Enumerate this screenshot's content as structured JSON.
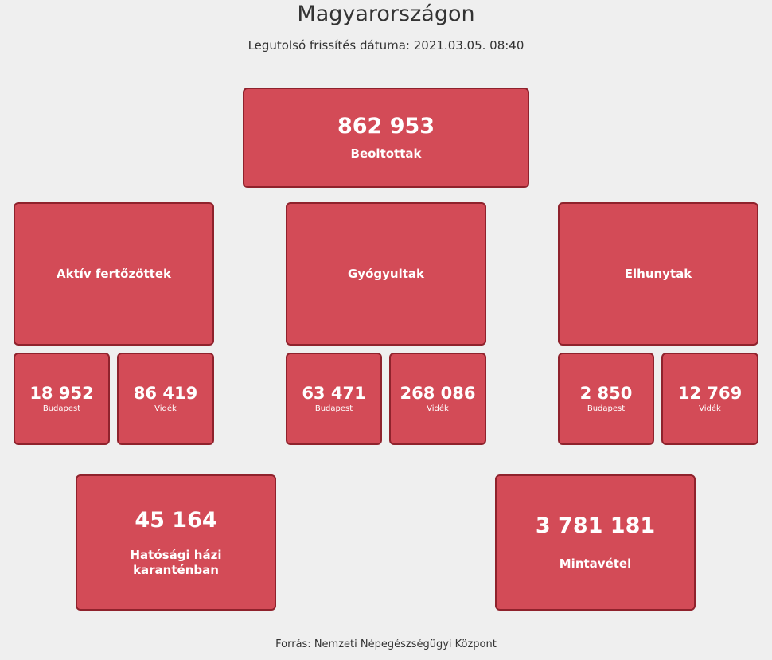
{
  "header": {
    "title": "Magyarországon",
    "updated": "Legutolsó frissítés dátuma: 2021.03.05. 08:40"
  },
  "vaccinated": {
    "value": "862 953",
    "label": "Beoltottak"
  },
  "active": {
    "label": "Aktív fertőzöttek",
    "budapest": {
      "value": "18 952",
      "label": "Budapest"
    },
    "countryside": {
      "value": "86 419",
      "label": "Vidék"
    }
  },
  "recovered": {
    "label": "Gyógyultak",
    "budapest": {
      "value": "63 471",
      "label": "Budapest"
    },
    "countryside": {
      "value": "268 086",
      "label": "Vidék"
    }
  },
  "deceased": {
    "label": "Elhunytak",
    "budapest": {
      "value": "2 850",
      "label": "Budapest"
    },
    "countryside": {
      "value": "12 769",
      "label": "Vidék"
    }
  },
  "quarantine": {
    "value": "45 164",
    "label": "Hatósági házi karanténban"
  },
  "samples": {
    "value": "3 781 181",
    "label": "Mintavétel"
  },
  "footer": {
    "source": "Forrás: Nemzeti Népegészségügyi Központ"
  },
  "colors": {
    "tile": "#d34b57",
    "tile_border": "#8f222c",
    "background": "#efefef"
  }
}
